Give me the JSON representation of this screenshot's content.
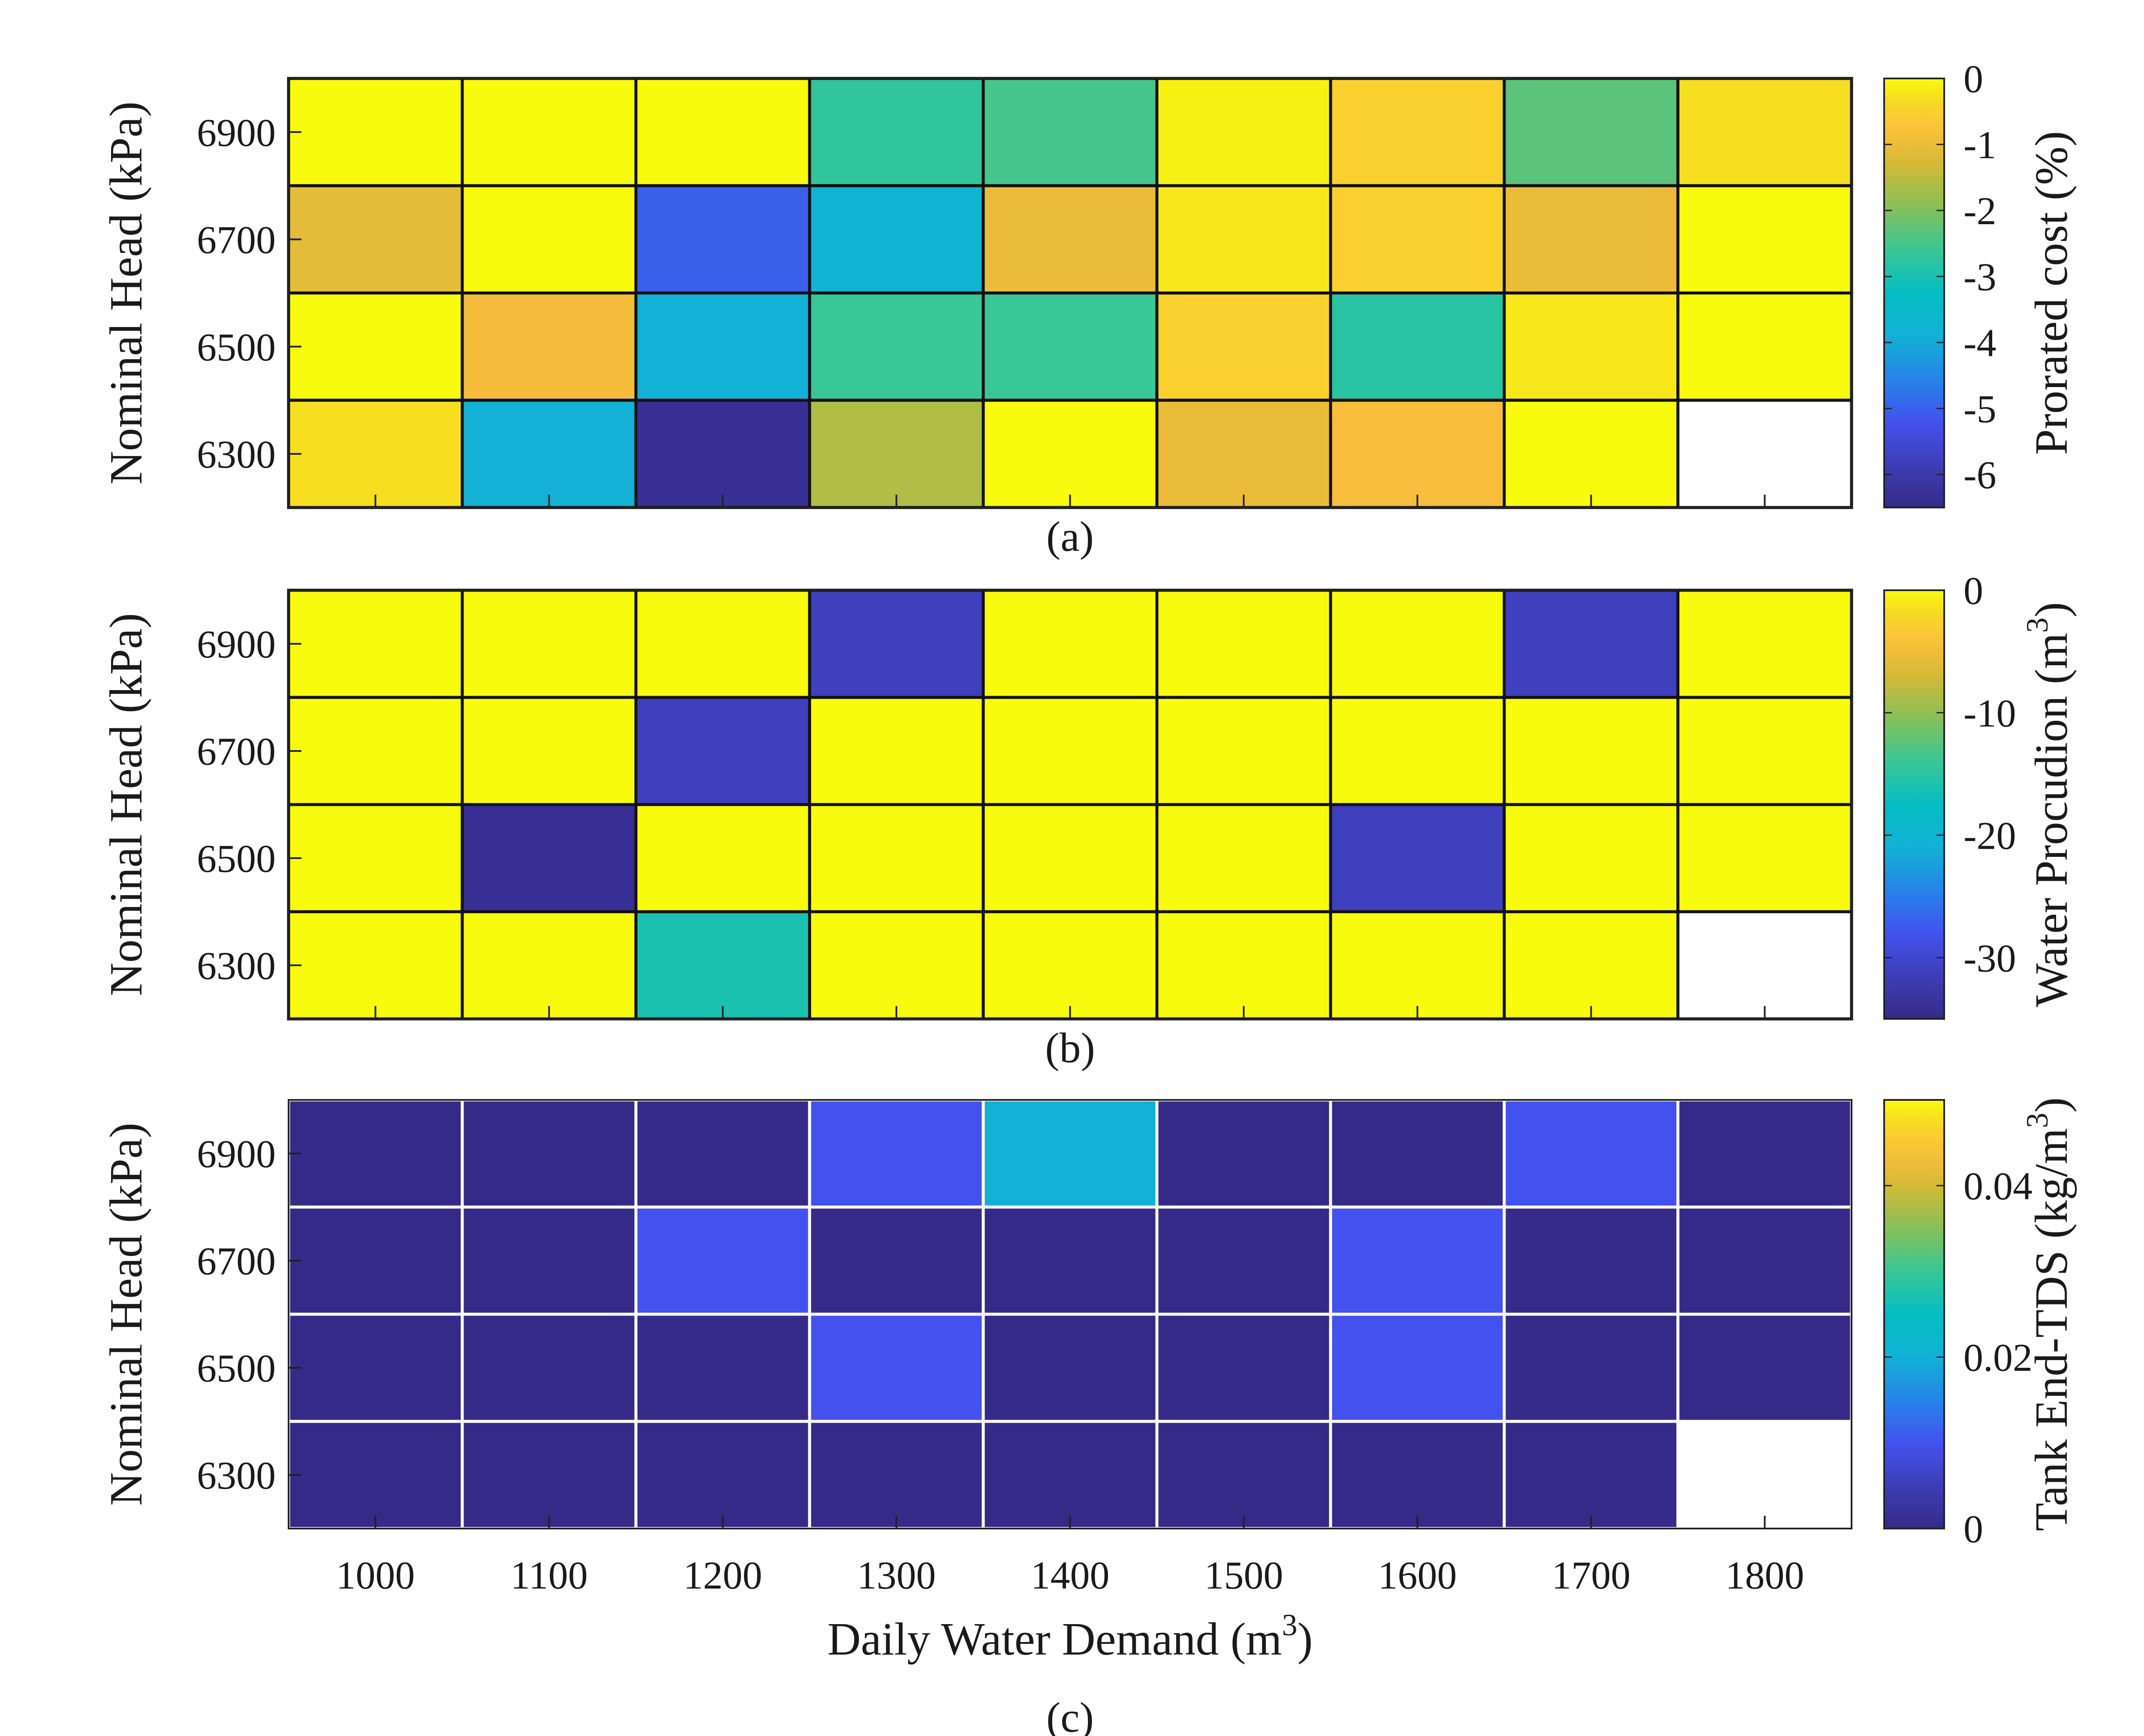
{
  "chart_data": [
    {
      "type": "heatmap",
      "panel_label": "(a)",
      "x_categories": [
        "1000",
        "1100",
        "1200",
        "1300",
        "1400",
        "1500",
        "1600",
        "1700",
        "1800"
      ],
      "y_categories": [
        "6900",
        "6700",
        "6500",
        "6300"
      ],
      "ylabel": "Nominal Head (kPa)",
      "xlabel": "",
      "show_x_ticks": false,
      "grid_color": "#111111",
      "colorbar": {
        "label": "Prorated cost (%)",
        "range": [
          -6.5,
          0
        ],
        "ticks": [
          0,
          -1,
          -2,
          -3,
          -4,
          -5,
          -6
        ],
        "tick_labels": [
          "0",
          "-1",
          "-2",
          "-3",
          "-4",
          "-5",
          "-6"
        ]
      },
      "values": [
        [
          0,
          0,
          0,
          -2.7,
          -2.5,
          -0.1,
          -0.5,
          -2.3,
          -0.3
        ],
        [
          -1.1,
          0,
          -5.0,
          -3.8,
          -1.0,
          -0.2,
          -0.5,
          -1.0,
          0
        ],
        [
          0,
          -0.9,
          -3.9,
          -2.6,
          -2.6,
          -0.5,
          -2.8,
          -0.2,
          0
        ],
        [
          -0.3,
          -3.9,
          -6.3,
          -1.6,
          0,
          -1.0,
          -0.8,
          0,
          null
        ]
      ]
    },
    {
      "type": "heatmap",
      "panel_label": "(b)",
      "x_categories": [
        "1000",
        "1100",
        "1200",
        "1300",
        "1400",
        "1500",
        "1600",
        "1700",
        "1800"
      ],
      "y_categories": [
        "6900",
        "6700",
        "6500",
        "6300"
      ],
      "ylabel": "Nominal Head (kPa)",
      "xlabel": "",
      "show_x_ticks": false,
      "grid_color": "#111111",
      "colorbar": {
        "label": "Water Procudion (m",
        "label_superscript": "3",
        "label_suffix": ")",
        "range": [
          -35,
          0
        ],
        "ticks": [
          0,
          -10,
          -20,
          -30
        ],
        "tick_labels": [
          "0",
          "-10",
          "-20",
          "-30"
        ]
      },
      "values": [
        [
          0,
          0,
          0,
          -31,
          0,
          0,
          0,
          -31,
          0
        ],
        [
          0,
          0,
          -31,
          0,
          0,
          0,
          0,
          0,
          0
        ],
        [
          0,
          -34,
          0,
          0,
          0,
          0,
          -31,
          0,
          0
        ],
        [
          0,
          0,
          -16,
          0,
          0,
          0,
          0,
          0,
          null
        ]
      ]
    },
    {
      "type": "heatmap",
      "panel_label": "(c)",
      "x_categories": [
        "1000",
        "1100",
        "1200",
        "1300",
        "1400",
        "1500",
        "1600",
        "1700",
        "1800"
      ],
      "y_categories": [
        "6900",
        "6700",
        "6500",
        "6300"
      ],
      "ylabel": "Nominal Head (kPa)",
      "xlabel": "Daily Water Demand (m",
      "xlabel_superscript": "3",
      "xlabel_suffix": ")",
      "show_x_ticks": true,
      "grid_color": "#ffffff",
      "colorbar": {
        "label": "Tank End-TDS (kg/m",
        "label_superscript": "3",
        "label_suffix": ")",
        "range": [
          0,
          0.05
        ],
        "ticks": [
          0,
          0.02,
          0.04
        ],
        "tick_labels": [
          "0",
          "0.02",
          "0.04"
        ]
      },
      "values": [
        [
          0,
          0,
          0,
          0.01,
          0.02,
          0,
          0,
          0.01,
          0
        ],
        [
          0,
          0,
          0.01,
          0,
          0,
          0,
          0.01,
          0,
          0
        ],
        [
          0,
          0,
          0,
          0.01,
          0,
          0,
          0.01,
          0,
          0
        ],
        [
          0,
          0,
          0,
          0,
          0,
          0,
          0,
          0,
          null
        ]
      ]
    }
  ]
}
